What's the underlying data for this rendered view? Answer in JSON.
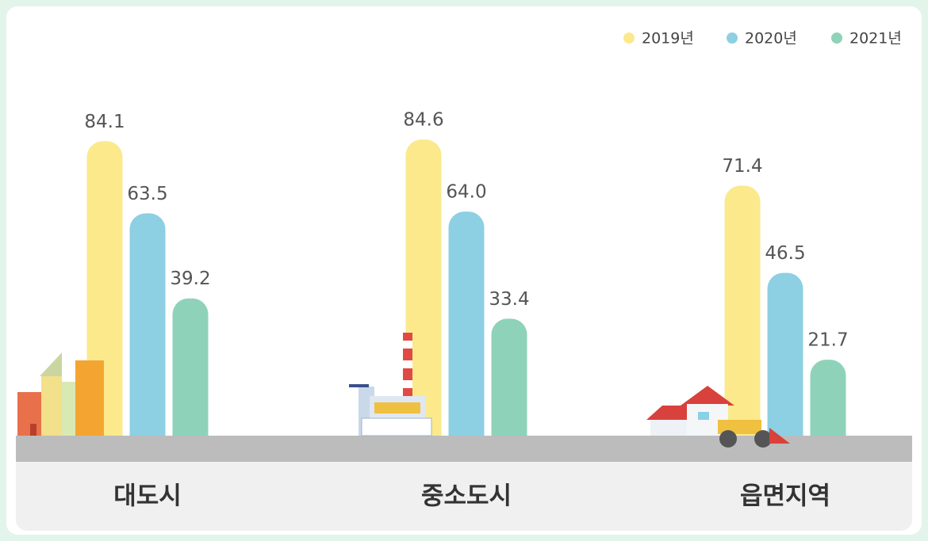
{
  "chart_data": {
    "type": "bar",
    "categories": [
      "대도시",
      "중소도시",
      "읍면지역"
    ],
    "series": [
      {
        "name": "2019년",
        "color": "#fbe98c",
        "values": [
          84.1,
          84.6,
          71.4
        ],
        "value_labels": [
          "84.1",
          "84.6",
          "71.4"
        ]
      },
      {
        "name": "2020년",
        "color": "#8dcfe3",
        "values": [
          63.5,
          64.0,
          46.5
        ],
        "value_labels": [
          "63.5",
          "64.0",
          "46.5"
        ]
      },
      {
        "name": "2021년",
        "color": "#8ed3b9",
        "values": [
          39.2,
          33.4,
          21.7
        ],
        "value_labels": [
          "39.2",
          "33.4",
          "21.7"
        ]
      }
    ],
    "legend": "top-right"
  }
}
